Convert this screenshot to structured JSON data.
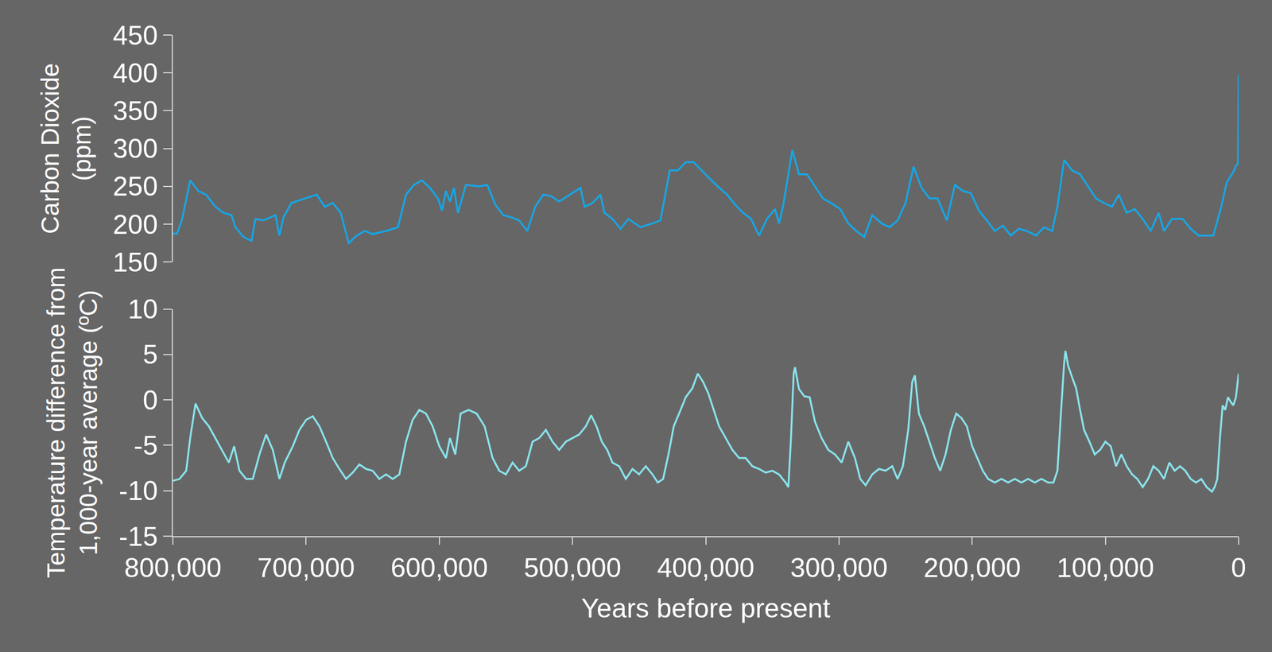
{
  "chart_data": [
    {
      "type": "line",
      "y_label": "Carbon Dioxide\n(ppm)",
      "xlim": [
        800000,
        0
      ],
      "ylim": [
        150,
        450
      ],
      "yticks": [
        150,
        200,
        250,
        300,
        350,
        400,
        450
      ],
      "grid": false,
      "tick_labels": "y",
      "x": [
        800000,
        797000,
        793000,
        787000,
        781000,
        775000,
        768000,
        762000,
        756000,
        753000,
        747000,
        741000,
        738000,
        732000,
        723000,
        720000,
        717000,
        711000,
        701000,
        692000,
        686000,
        680000,
        674000,
        668000,
        662000,
        656000,
        650000,
        640000,
        631000,
        625000,
        619000,
        613000,
        607000,
        601000,
        598000,
        595000,
        592000,
        589000,
        586000,
        580000,
        570000,
        564000,
        558000,
        552000,
        546000,
        540000,
        534000,
        528000,
        522000,
        516000,
        510000,
        504000,
        494000,
        491000,
        485000,
        479000,
        476000,
        470000,
        464000,
        458000,
        449000,
        440000,
        434000,
        427000,
        421000,
        415000,
        409000,
        403000,
        397000,
        391000,
        384000,
        378000,
        372000,
        366000,
        360000,
        354000,
        348000,
        345000,
        342000,
        339000,
        335000,
        330000,
        324000,
        318000,
        312000,
        306000,
        299000,
        293000,
        287000,
        281000,
        275000,
        268000,
        262000,
        256000,
        250000,
        244000,
        238000,
        232000,
        226000,
        219000,
        213000,
        207000,
        201000,
        195000,
        189000,
        183000,
        177000,
        171000,
        165000,
        159000,
        152000,
        146000,
        140000,
        136000,
        131000,
        125000,
        119000,
        113000,
        107000,
        101000,
        95000,
        90000,
        84000,
        78000,
        72000,
        66000,
        60000,
        56000,
        50000,
        42000,
        36000,
        30000,
        24000,
        19000,
        13000,
        9000,
        4000,
        2000,
        500,
        0
      ],
      "series": [
        {
          "color": "#16a6e6",
          "values": [
            188,
            187,
            207,
            258,
            244,
            239,
            223,
            215,
            212,
            196,
            183,
            178,
            207,
            205,
            212,
            185,
            209,
            228,
            234,
            239,
            223,
            228,
            215,
            175,
            185,
            191,
            187,
            191,
            196,
            239,
            252,
            258,
            248,
            234,
            218,
            244,
            230,
            248,
            215,
            252,
            250,
            252,
            226,
            212,
            209,
            205,
            191,
            223,
            239,
            237,
            230,
            237,
            248,
            223,
            228,
            239,
            215,
            207,
            194,
            207,
            196,
            201,
            205,
            271,
            271,
            282,
            282,
            271,
            260,
            250,
            239,
            226,
            215,
            207,
            185,
            207,
            220,
            201,
            223,
            255,
            298,
            266,
            266,
            250,
            234,
            228,
            220,
            201,
            191,
            183,
            212,
            201,
            196,
            205,
            228,
            276,
            248,
            234,
            234,
            205,
            252,
            244,
            241,
            218,
            205,
            191,
            198,
            185,
            194,
            191,
            185,
            196,
            191,
            223,
            285,
            271,
            266,
            250,
            234,
            228,
            223,
            239,
            215,
            220,
            207,
            191,
            215,
            191,
            207,
            207,
            194,
            185,
            185,
            185,
            223,
            255,
            269,
            277,
            280,
            397
          ]
        }
      ]
    },
    {
      "type": "line",
      "y_label": "Temperature difference from\n1,000-year average (ºC)",
      "x_label": "Years before present",
      "xlim": [
        800000,
        0
      ],
      "xticks": [
        {
          "value": 800000,
          "label": "800,000"
        },
        {
          "value": 700000,
          "label": "700,000"
        },
        {
          "value": 600000,
          "label": "600,000"
        },
        {
          "value": 500000,
          "label": "500,000"
        },
        {
          "value": 400000,
          "label": "400,000"
        },
        {
          "value": 300000,
          "label": "300,000"
        },
        {
          "value": 200000,
          "label": "200,000"
        },
        {
          "value": 100000,
          "label": "100,000"
        },
        0
      ],
      "ylim": [
        -15,
        10
      ],
      "yticks": [
        -15,
        -10,
        -5,
        0,
        5,
        10
      ],
      "grid": false,
      "x": [
        800000,
        795000,
        790000,
        787000,
        783000,
        778000,
        773000,
        768000,
        763000,
        758000,
        754000,
        750000,
        745000,
        740000,
        735000,
        730000,
        725000,
        720000,
        716000,
        710000,
        705000,
        700000,
        695000,
        690000,
        685000,
        680000,
        675000,
        670000,
        665000,
        660000,
        655000,
        650000,
        645000,
        640000,
        635000,
        630000,
        625000,
        620000,
        615000,
        610000,
        605000,
        600000,
        595000,
        592000,
        588000,
        584000,
        578000,
        572000,
        566000,
        560000,
        555000,
        550000,
        545000,
        540000,
        535000,
        530000,
        525000,
        520000,
        515000,
        510000,
        505000,
        500000,
        495000,
        490000,
        486000,
        482000,
        478000,
        474000,
        470000,
        465000,
        460000,
        455000,
        450000,
        445000,
        440000,
        436000,
        432000,
        428000,
        424000,
        420000,
        415000,
        410000,
        406000,
        402000,
        398000,
        394000,
        390000,
        385000,
        380000,
        375000,
        370000,
        365000,
        360000,
        355000,
        350000,
        345000,
        340000,
        338000,
        336000,
        334000,
        333000,
        330000,
        326000,
        322000,
        318000,
        313000,
        308000,
        303000,
        298000,
        293000,
        288000,
        284000,
        280000,
        275000,
        270000,
        265000,
        260000,
        256000,
        252000,
        248000,
        245000,
        243000,
        240000,
        236000,
        232000,
        228000,
        224000,
        220000,
        216000,
        212000,
        208000,
        204000,
        200000,
        196000,
        192000,
        188000,
        183000,
        178000,
        173000,
        168000,
        163000,
        158000,
        153000,
        148000,
        143000,
        139000,
        136000,
        133000,
        131000,
        130000,
        128000,
        125000,
        122000,
        119000,
        116000,
        112000,
        108000,
        104000,
        100000,
        96000,
        92000,
        88000,
        84000,
        80000,
        76000,
        72000,
        68000,
        64000,
        60000,
        56000,
        52000,
        48000,
        44000,
        40000,
        36000,
        32000,
        28000,
        24000,
        20000,
        18000,
        16000,
        14000,
        12000,
        10000,
        8000,
        6000,
        4000,
        2000,
        0
      ],
      "series": [
        {
          "color": "#8ae3ec",
          "values": [
            -8.9,
            -8.7,
            -7.8,
            -4.2,
            -0.4,
            -2,
            -2.9,
            -4.2,
            -5.5,
            -6.9,
            -5.1,
            -7.8,
            -8.7,
            -8.7,
            -6,
            -3.8,
            -5.5,
            -8.7,
            -6.9,
            -5.1,
            -3.3,
            -2.2,
            -1.8,
            -2.9,
            -4.6,
            -6.4,
            -7.6,
            -8.7,
            -8,
            -7.1,
            -7.6,
            -7.8,
            -8.7,
            -8.2,
            -8.7,
            -8.2,
            -4.6,
            -2.2,
            -1.1,
            -1.5,
            -2.9,
            -5.1,
            -6.4,
            -4.2,
            -6,
            -1.5,
            -1.1,
            -1.5,
            -2.9,
            -6.4,
            -7.8,
            -8.2,
            -6.9,
            -7.8,
            -7.3,
            -4.6,
            -4.2,
            -3.3,
            -4.6,
            -5.5,
            -4.6,
            -4.2,
            -3.8,
            -2.9,
            -1.7,
            -2.9,
            -4.6,
            -5.5,
            -6.9,
            -7.3,
            -8.7,
            -7.6,
            -8.2,
            -7.3,
            -8.2,
            -9.1,
            -8.7,
            -6,
            -2.9,
            -1.5,
            0.3,
            1.3,
            2.9,
            2,
            0.7,
            -1.1,
            -2.9,
            -4.2,
            -5.5,
            -6.4,
            -6.4,
            -7.3,
            -7.6,
            -8,
            -7.8,
            -8.2,
            -9.1,
            -9.6,
            -4.2,
            2.9,
            3.6,
            1.2,
            0.4,
            0.3,
            -2.4,
            -4.2,
            -5.5,
            -6,
            -6.9,
            -4.6,
            -6.4,
            -8.7,
            -9.4,
            -8.2,
            -7.6,
            -7.8,
            -7.3,
            -8.7,
            -7.3,
            -3.3,
            2,
            2.7,
            -1.5,
            -2.9,
            -4.6,
            -6.4,
            -7.8,
            -6,
            -3.3,
            -1.5,
            -2,
            -2.9,
            -5.1,
            -6.4,
            -7.8,
            -8.7,
            -9.1,
            -8.7,
            -9.1,
            -8.7,
            -9.1,
            -8.7,
            -9.1,
            -8.7,
            -9.1,
            -9.1,
            -7.8,
            -0.6,
            4,
            5.4,
            3.8,
            2.5,
            1.3,
            -1.1,
            -3.3,
            -4.6,
            -6,
            -5.5,
            -4.6,
            -5.1,
            -7.3,
            -6,
            -7.3,
            -8.2,
            -8.7,
            -9.6,
            -8.7,
            -7.3,
            -7.8,
            -8.7,
            -6.9,
            -7.8,
            -7.3,
            -7.8,
            -8.7,
            -9.1,
            -8.7,
            -9.6,
            -10.1,
            -9.6,
            -8.7,
            -4.2,
            -0.6,
            -1.1,
            0.3,
            -0.2,
            -0.6,
            0.3,
            2.9
          ]
        }
      ]
    }
  ]
}
